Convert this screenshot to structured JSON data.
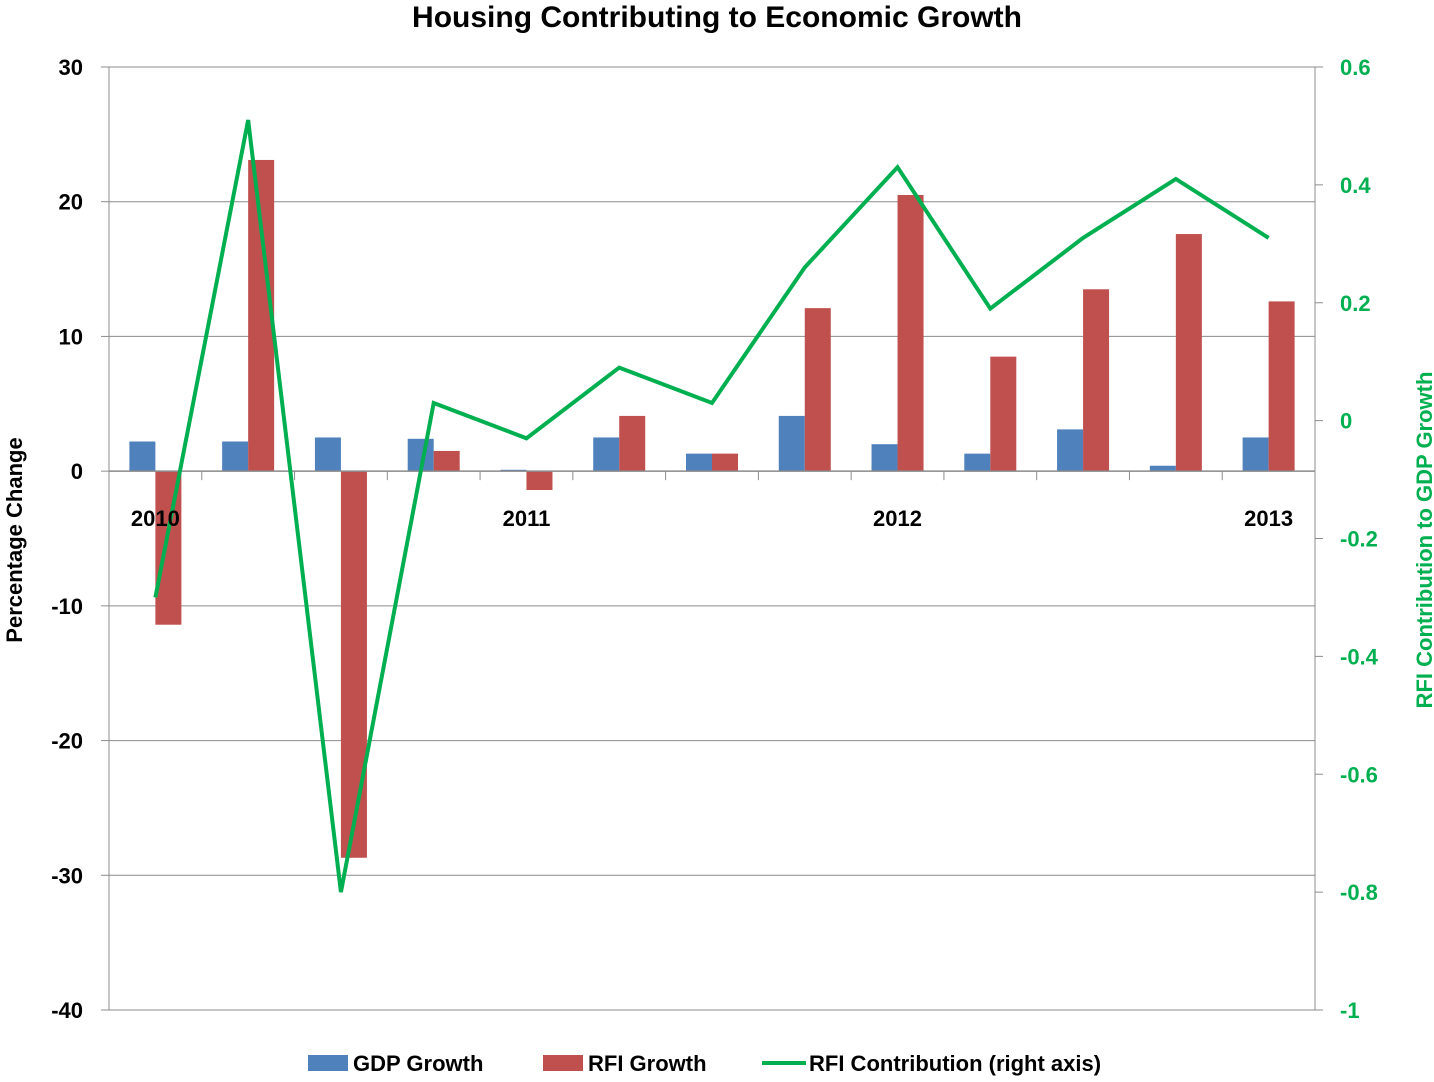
{
  "chart_data": {
    "type": "bar",
    "title": "Housing Contributing to Economic Growth",
    "ylabel": "Percentage Change",
    "y2label": "RFI Contribution to GDP Growth",
    "ylim": [
      -40,
      30
    ],
    "yticks": [
      30,
      20,
      10,
      0,
      -10,
      -20,
      -30,
      -40
    ],
    "y2lim": [
      -1,
      0.6
    ],
    "y2ticks": [
      "0.6",
      "0.4",
      "0.2",
      "0",
      "-0.2",
      "-0.4",
      "-0.6",
      "-0.8",
      "-1"
    ],
    "grid": true,
    "legend_position": "bottom",
    "categories": [
      "2010",
      "",
      "",
      "",
      "2011",
      "",
      "",
      "",
      "2012",
      "",
      "",
      "",
      "2013"
    ],
    "series": [
      {
        "name": "GDP Growth",
        "type": "bar",
        "axis": "left",
        "color": "#4F81BD",
        "values": [
          2.2,
          2.2,
          2.5,
          2.4,
          0.1,
          2.5,
          1.3,
          4.1,
          2.0,
          1.3,
          3.1,
          0.4,
          2.5
        ]
      },
      {
        "name": "RFI Growth",
        "type": "bar",
        "axis": "left",
        "color": "#C0504D",
        "values": [
          -11.4,
          23.1,
          -28.7,
          1.5,
          -1.4,
          4.1,
          1.3,
          12.1,
          20.5,
          8.5,
          13.5,
          17.6,
          12.6
        ]
      },
      {
        "name": "RFI Contribution (right axis)",
        "type": "line",
        "axis": "right",
        "color": "#00B050",
        "values": [
          -0.3,
          0.51,
          -0.8,
          0.03,
          -0.03,
          0.09,
          0.03,
          0.26,
          0.43,
          0.19,
          0.31,
          0.41,
          0.31
        ]
      }
    ]
  }
}
